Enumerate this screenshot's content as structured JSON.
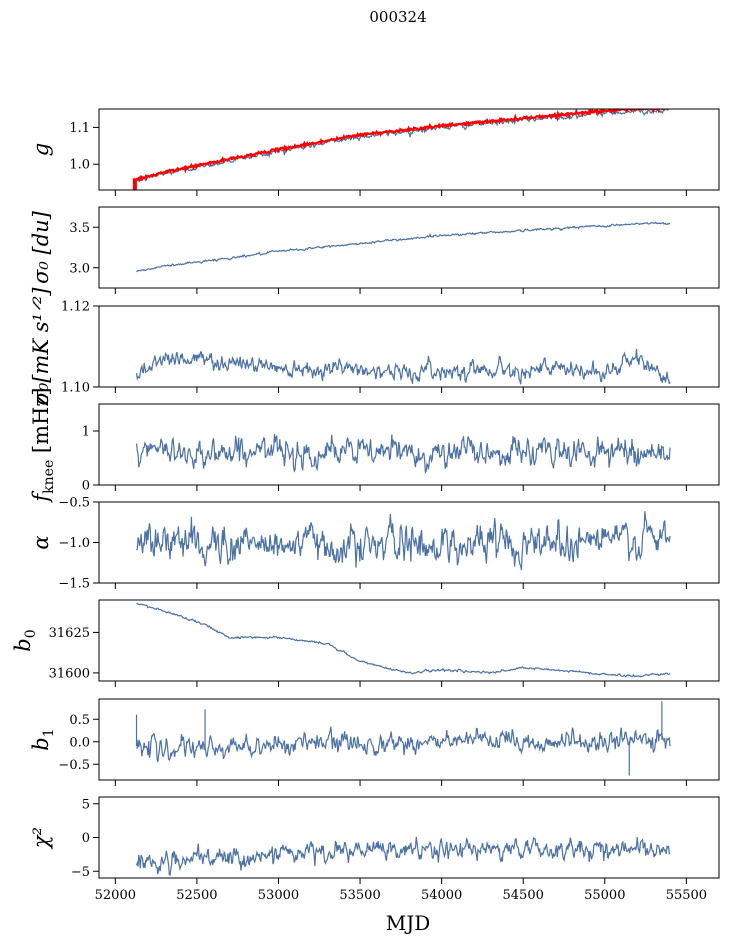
{
  "chart_data": {
    "title": "000324",
    "xlabel": "MJD",
    "type": "line",
    "shared_x": {
      "xlim": [
        51900,
        55700
      ],
      "ticks": [
        52000,
        52500,
        53000,
        53500,
        54000,
        54500,
        55000,
        55500
      ],
      "tick_labels": [
        "52000",
        "52500",
        "53000",
        "53500",
        "54000",
        "54500",
        "55000",
        "55500"
      ]
    },
    "colors": {
      "series": "#4c72a5",
      "overlay": "#ff0000"
    },
    "panels": [
      {
        "id": "g",
        "ylabel_main": "g",
        "ylabel_sub": "",
        "ylim": [
          0.93,
          1.15
        ],
        "yticks": [
          1.0,
          1.1
        ],
        "ytick_labels": [
          "1.0",
          "1.1"
        ],
        "noise": 0.003,
        "keypoints": [
          [
            52130,
            0.955
          ],
          [
            52300,
            0.975
          ],
          [
            52700,
            1.01
          ],
          [
            53000,
            1.035
          ],
          [
            53500,
            1.075
          ],
          [
            54000,
            1.1
          ],
          [
            54500,
            1.12
          ],
          [
            55000,
            1.14
          ],
          [
            55400,
            1.148
          ]
        ],
        "overlay": {
          "name": "",
          "keypoints": [
            [
              52130,
              0.958
            ],
            [
              52300,
              0.978
            ],
            [
              52700,
              1.014
            ],
            [
              53000,
              1.04
            ],
            [
              53500,
              1.08
            ],
            [
              54000,
              1.104
            ],
            [
              54500,
              1.125
            ],
            [
              55000,
              1.145
            ],
            [
              55400,
              1.153
            ]
          ],
          "spike": [
            [
              52120,
              0.93
            ],
            [
              52120,
              0.962
            ]
          ]
        }
      },
      {
        "id": "sigma0-du",
        "ylabel_main": "σ₀ [du]",
        "ylabel_sub": "",
        "ylim": [
          2.75,
          3.75
        ],
        "yticks": [
          3.0,
          3.5
        ],
        "ytick_labels": [
          "3.0",
          "3.5"
        ],
        "noise": 0.006,
        "keypoints": [
          [
            52130,
            2.95
          ],
          [
            52300,
            3.02
          ],
          [
            52700,
            3.12
          ],
          [
            53000,
            3.2
          ],
          [
            53500,
            3.3
          ],
          [
            54000,
            3.4
          ],
          [
            54500,
            3.46
          ],
          [
            55000,
            3.52
          ],
          [
            55300,
            3.55
          ],
          [
            55400,
            3.54
          ]
        ]
      },
      {
        "id": "sigma0-mk",
        "ylabel_main": "σ₀[mK s¹ᐟ²]",
        "ylabel_sub": "",
        "ylim": [
          1.1,
          1.12
        ],
        "yticks": [
          1.1,
          1.12
        ],
        "ytick_labels": [
          "1.10",
          "1.12"
        ],
        "noise": 0.0009,
        "keypoints": [
          [
            52130,
            1.1035
          ],
          [
            52300,
            1.1075
          ],
          [
            52600,
            1.1065
          ],
          [
            53000,
            1.105
          ],
          [
            53500,
            1.1045
          ],
          [
            53800,
            1.1035
          ],
          [
            54200,
            1.1045
          ],
          [
            54600,
            1.1045
          ],
          [
            55000,
            1.1035
          ],
          [
            55200,
            1.107
          ],
          [
            55400,
            1.102
          ]
        ]
      },
      {
        "id": "fknee",
        "ylabel_main": "f",
        "ylabel_sub": "knee",
        "ylabel_suffix": " [mHz]",
        "ylim": [
          0,
          1.5
        ],
        "yticks": [
          0,
          1
        ],
        "ytick_labels": [
          "0",
          "1"
        ],
        "noise": 0.11,
        "keypoints": [
          [
            52130,
            0.6
          ],
          [
            53000,
            0.62
          ],
          [
            54000,
            0.6
          ],
          [
            55000,
            0.62
          ],
          [
            55400,
            0.62
          ]
        ]
      },
      {
        "id": "alpha",
        "ylabel_main": "α",
        "ylabel_sub": "",
        "ylim": [
          -1.5,
          -0.5
        ],
        "yticks": [
          -1.5,
          -1.0,
          -0.5
        ],
        "ytick_labels": [
          "−1.5",
          "−1.0",
          "−0.5"
        ],
        "noise": 0.1,
        "keypoints": [
          [
            52130,
            -1.0
          ],
          [
            53000,
            -1.02
          ],
          [
            54000,
            -1.02
          ],
          [
            54500,
            -0.98
          ],
          [
            55000,
            -0.96
          ],
          [
            55400,
            -0.98
          ]
        ]
      },
      {
        "id": "b0",
        "ylabel_main": "b",
        "ylabel_sub": "0",
        "ylim": [
          31595,
          31645
        ],
        "yticks": [
          31600,
          31625
        ],
        "ytick_labels": [
          "31600",
          "31625"
        ],
        "noise": 0.3,
        "keypoints": [
          [
            52130,
            31643
          ],
          [
            52300,
            31638
          ],
          [
            52500,
            31632
          ],
          [
            52700,
            31622
          ],
          [
            53000,
            31622
          ],
          [
            53300,
            31618
          ],
          [
            53500,
            31607
          ],
          [
            53800,
            31600
          ],
          [
            54000,
            31602
          ],
          [
            54300,
            31600
          ],
          [
            54500,
            31603
          ],
          [
            54800,
            31601
          ],
          [
            55000,
            31599
          ],
          [
            55200,
            31598
          ],
          [
            55400,
            31600
          ]
        ]
      },
      {
        "id": "b1",
        "ylabel_main": "b",
        "ylabel_sub": "1",
        "ylim": [
          -0.85,
          0.95
        ],
        "yticks": [
          -0.5,
          0.0,
          0.5
        ],
        "ytick_labels": [
          "−0.5",
          "0.0",
          "0.5"
        ],
        "noise": 0.1,
        "keypoints": [
          [
            52130,
            -0.1
          ],
          [
            52400,
            -0.2
          ],
          [
            53000,
            -0.05
          ],
          [
            54000,
            0.0
          ],
          [
            55000,
            0.0
          ],
          [
            55400,
            0.05
          ]
        ],
        "spikes": [
          [
            52130,
            0.6
          ],
          [
            52550,
            0.72
          ],
          [
            55150,
            -0.75
          ],
          [
            55350,
            0.9
          ]
        ]
      },
      {
        "id": "chi2",
        "ylabel_main": "χ²",
        "ylabel_sub": "",
        "ylim": [
          -6,
          6
        ],
        "yticks": [
          -5,
          0,
          5
        ],
        "ytick_labels": [
          "−5",
          "0",
          "5"
        ],
        "noise": 0.6,
        "keypoints": [
          [
            52130,
            -3.3
          ],
          [
            52300,
            -3.8
          ],
          [
            52700,
            -3.0
          ],
          [
            53200,
            -2.2
          ],
          [
            54000,
            -1.8
          ],
          [
            55000,
            -1.6
          ],
          [
            55400,
            -1.8
          ]
        ]
      }
    ]
  }
}
